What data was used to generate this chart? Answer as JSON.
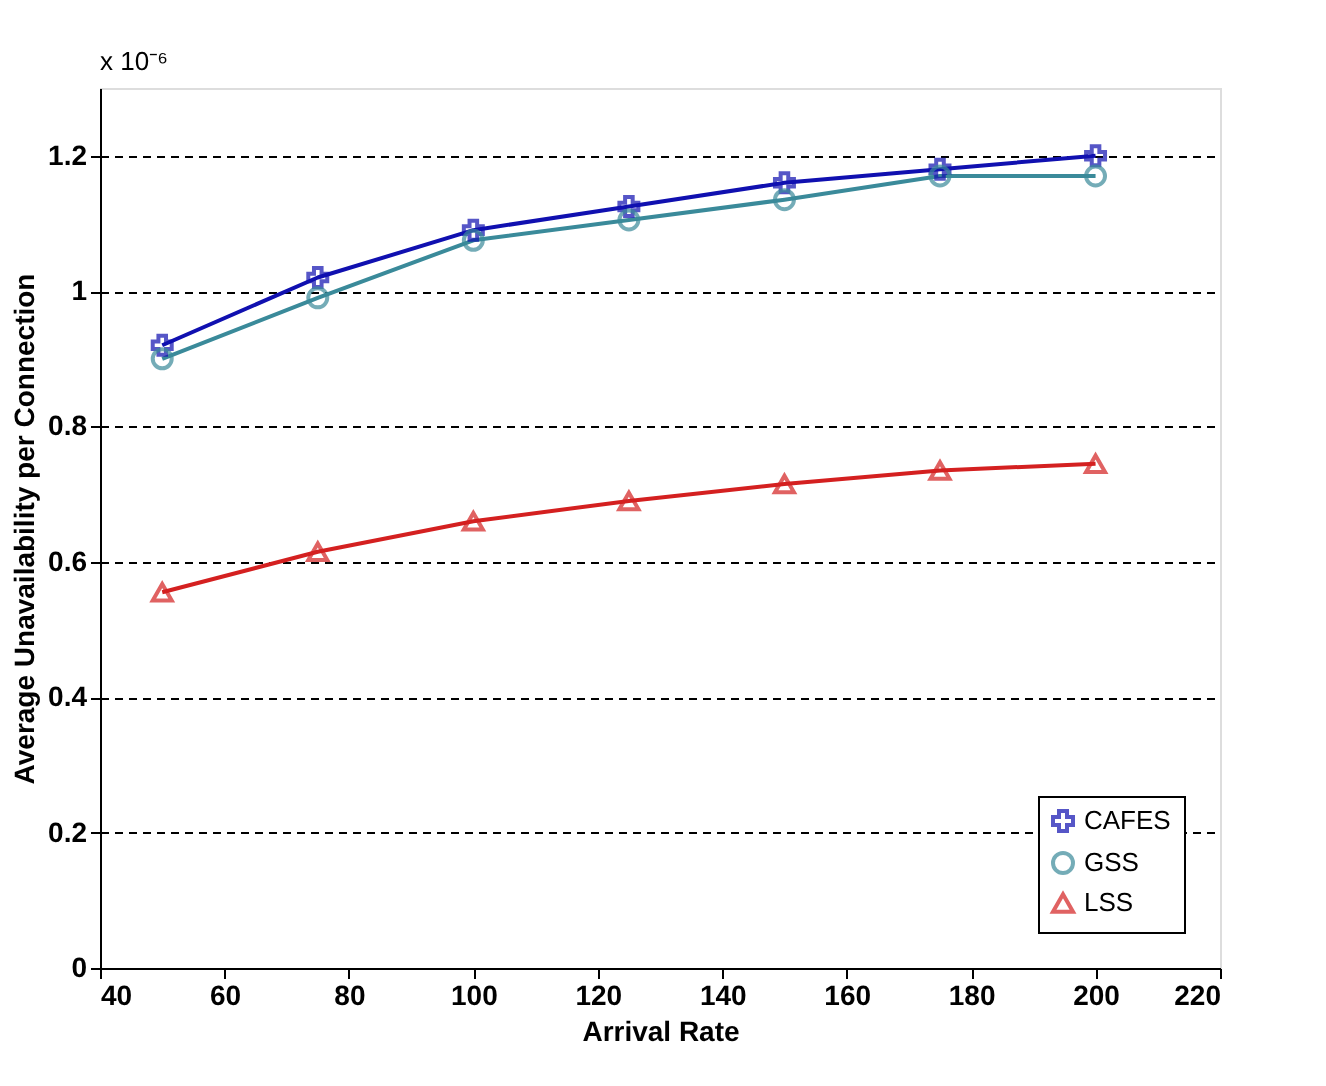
{
  "chart_data": {
    "type": "line",
    "xlabel": "Arrival Rate",
    "ylabel": "Average Unavailability per Connection",
    "annotations": [
      "x 10⁻⁶"
    ],
    "x": [
      50,
      75,
      100,
      125,
      150,
      175,
      200
    ],
    "series": [
      {
        "name": "CAFES",
        "color": "#1010b0",
        "marker": "cross",
        "values": [
          0.92,
          1.02,
          1.09,
          1.125,
          1.16,
          1.18,
          1.2
        ]
      },
      {
        "name": "GSS",
        "color": "#3a8a9a",
        "marker": "circle",
        "values": [
          0.9,
          0.99,
          1.075,
          1.105,
          1.135,
          1.17,
          1.17
        ]
      },
      {
        "name": "LSS",
        "color": "#d42020",
        "marker": "triangle",
        "values": [
          0.555,
          0.615,
          0.66,
          0.69,
          0.715,
          0.735,
          0.745
        ]
      }
    ],
    "xlim": [
      40,
      220
    ],
    "xticks": [
      40,
      60,
      80,
      100,
      120,
      140,
      160,
      180,
      200,
      220
    ],
    "ylim": [
      0,
      1.3
    ],
    "yticks": [
      0,
      0.2,
      0.4,
      0.6,
      0.8,
      1,
      1.2
    ],
    "grid": "y",
    "legend": "bottom right",
    "line_style": "solid"
  }
}
